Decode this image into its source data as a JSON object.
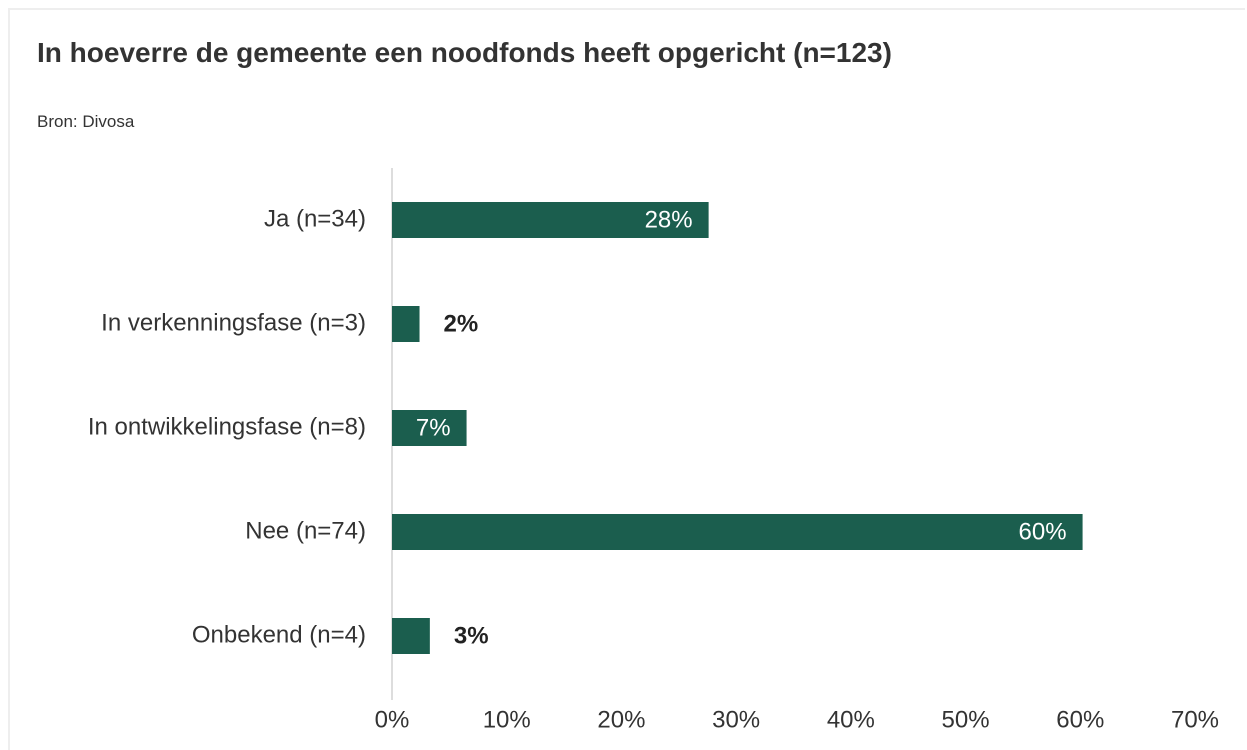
{
  "chart_data": {
    "type": "bar",
    "orientation": "horizontal",
    "title": "In hoeverre de gemeente een noodfonds heeft opgericht (n=123)",
    "subtitle": "Bron: Divosa",
    "categories": [
      "Ja (n=34)",
      "In verkenningsfase (n=3)",
      "In ontwikkelingsfase (n=8)",
      "Nee (n=74)",
      "Onbekend (n=4)"
    ],
    "values": [
      27.6,
      2.4,
      6.5,
      60.2,
      3.3
    ],
    "value_labels": [
      "28%",
      "2%",
      "7%",
      "60%",
      "3%"
    ],
    "color": "#1b5e4e",
    "xlim": [
      0,
      70
    ],
    "xticks": [
      {
        "value": 0,
        "label": "0%"
      },
      {
        "value": 10,
        "label": "10%"
      },
      {
        "value": 20,
        "label": "20%"
      },
      {
        "value": 30,
        "label": "30%"
      },
      {
        "value": 40,
        "label": "40%"
      },
      {
        "value": 50,
        "label": "50%"
      },
      {
        "value": 60,
        "label": "60%"
      },
      {
        "value": 70,
        "label": "70%"
      }
    ],
    "grid": false
  }
}
